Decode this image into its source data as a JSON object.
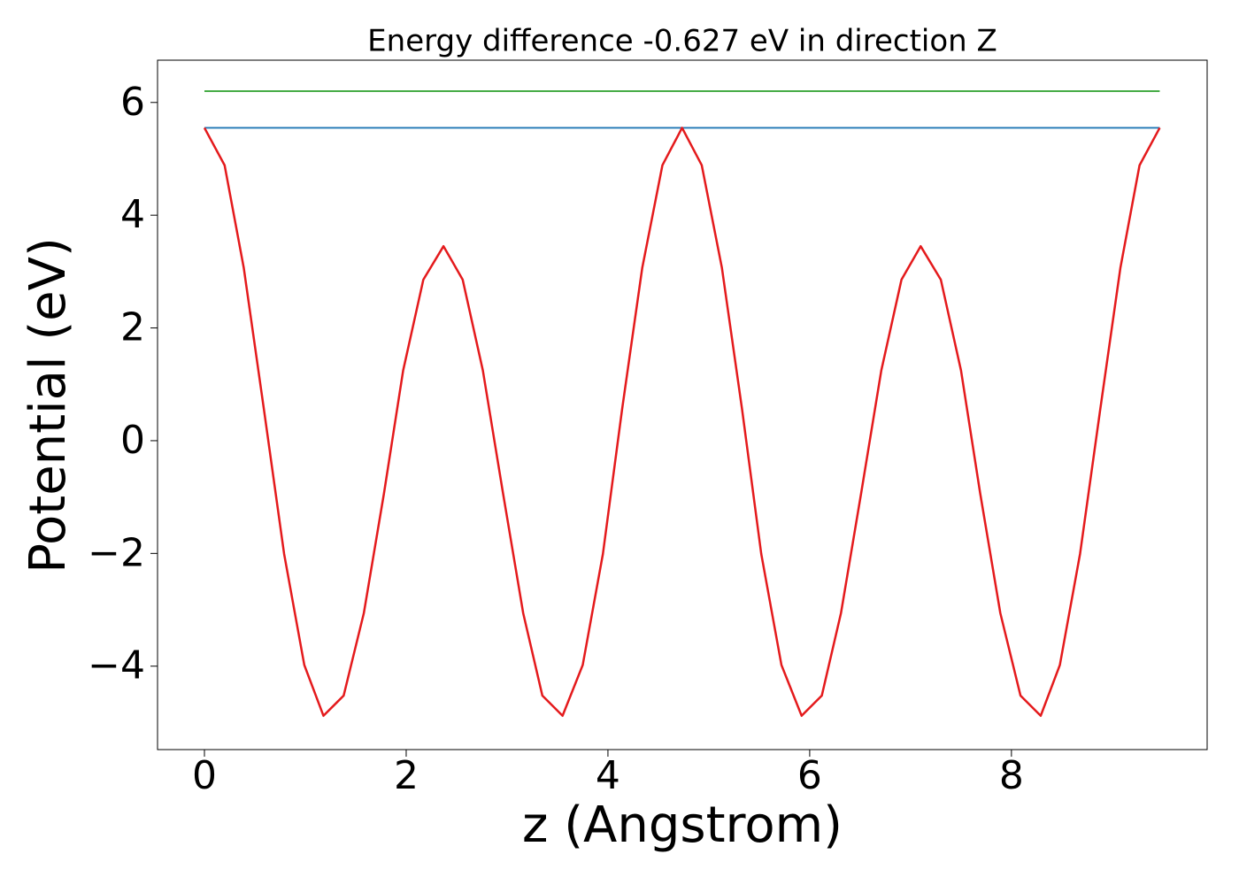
{
  "chart_data": {
    "type": "line",
    "title": "Energy difference -0.627 eV in direction Z",
    "x_label": "z (Angstrom)",
    "y_label": "Potential (eV)",
    "xlim": [
      -0.465,
      9.94
    ],
    "ylim": [
      -5.48,
      6.75
    ],
    "xticks": [
      0,
      2,
      4,
      6,
      8
    ],
    "yticks": [
      {
        "value": -4,
        "label": "−4"
      },
      {
        "value": -2,
        "label": "−2"
      },
      0,
      2,
      4,
      6
    ],
    "grid": false,
    "series": [
      {
        "color": "#1f77b4",
        "x": [
          0,
          9.47
        ],
        "values": [
          5.55,
          5.55
        ]
      },
      {
        "color": "#2ca02c",
        "x": [
          0,
          9.47
        ],
        "values": [
          6.2,
          6.2
        ]
      },
      {
        "color": "#e41a1c",
        "x": [
          0,
          0.2,
          0.39,
          0.59,
          0.79,
          0.99,
          1.18,
          1.38,
          1.58,
          1.78,
          1.97,
          2.17,
          2.37,
          2.56,
          2.76,
          2.96,
          3.16,
          3.35,
          3.55,
          3.75,
          3.95,
          4.14,
          4.34,
          4.54,
          4.735,
          4.93,
          5.13,
          5.33,
          5.52,
          5.72,
          5.92,
          6.12,
          6.31,
          6.51,
          6.71,
          6.91,
          7.1,
          7.3,
          7.5,
          7.69,
          7.89,
          8.09,
          8.29,
          8.48,
          8.68,
          8.88,
          9.08,
          9.27,
          9.47
        ],
        "values": [
          5.55,
          4.886,
          3.064,
          0.552,
          -2.01,
          -3.98,
          -4.88,
          -4.523,
          -3.06,
          -0.933,
          1.246,
          2.857,
          3.45,
          2.857,
          1.246,
          -0.933,
          -3.06,
          -4.523,
          -4.88,
          -3.98,
          -2.01,
          0.552,
          3.064,
          4.886,
          5.55,
          4.886,
          3.064,
          0.552,
          -2.01,
          -3.98,
          -4.88,
          -4.523,
          -3.06,
          -0.933,
          1.246,
          2.857,
          3.45,
          2.857,
          1.246,
          -0.933,
          -3.06,
          -4.523,
          -4.88,
          -3.98,
          -2.01,
          0.552,
          3.064,
          4.886,
          5.55
        ]
      }
    ]
  }
}
